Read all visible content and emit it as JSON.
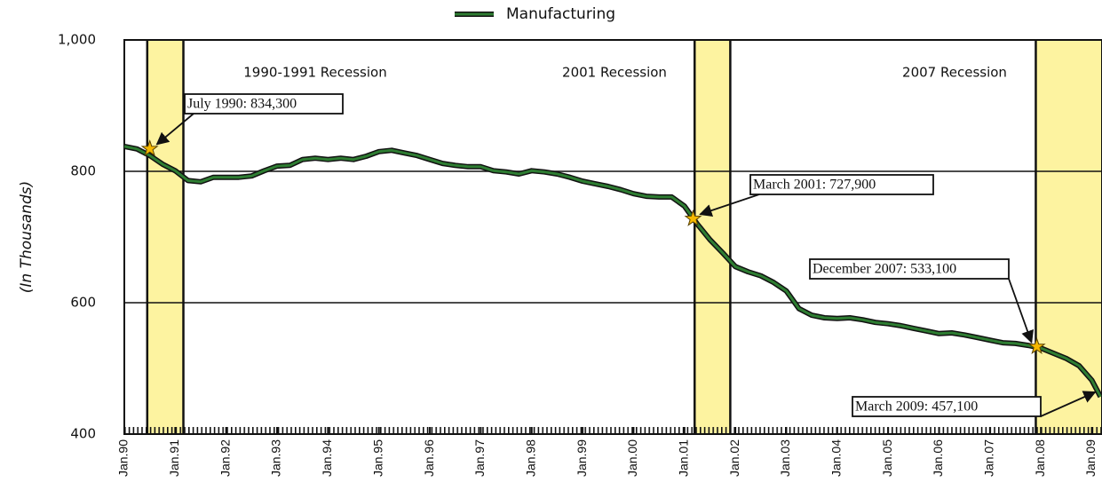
{
  "chart_data": {
    "type": "line",
    "legend": "Manufacturing",
    "y_label": "(In Thousands)",
    "series": [
      {
        "name": "Manufacturing",
        "color": "#2e7d32",
        "x": [
          1990.0,
          1990.25,
          1990.5,
          1990.75,
          1991.0,
          1991.25,
          1991.5,
          1991.75,
          1992.0,
          1992.25,
          1992.5,
          1992.75,
          1993.0,
          1993.25,
          1993.5,
          1993.75,
          1994.0,
          1994.25,
          1994.5,
          1994.75,
          1995.0,
          1995.25,
          1995.5,
          1995.75,
          1996.0,
          1996.25,
          1996.5,
          1996.75,
          1997.0,
          1997.25,
          1997.5,
          1997.75,
          1998.0,
          1998.25,
          1998.5,
          1998.75,
          1999.0,
          1999.25,
          1999.5,
          1999.75,
          2000.0,
          2000.25,
          2000.5,
          2000.75,
          2001.0,
          2001.25,
          2001.5,
          2001.75,
          2002.0,
          2002.25,
          2002.5,
          2002.75,
          2003.0,
          2003.25,
          2003.5,
          2003.75,
          2004.0,
          2004.25,
          2004.5,
          2004.75,
          2005.0,
          2005.25,
          2005.5,
          2005.75,
          2006.0,
          2006.25,
          2006.5,
          2006.75,
          2007.0,
          2007.25,
          2007.5,
          2007.75,
          2008.0,
          2008.25,
          2008.5,
          2008.75,
          2009.0,
          2009.17
        ],
        "values": [
          838,
          834,
          824,
          811,
          801,
          786,
          784,
          791,
          791,
          791,
          793,
          801,
          808,
          809,
          818,
          820,
          818,
          820,
          818,
          823,
          830,
          832,
          828,
          824,
          818,
          812,
          809,
          807,
          807,
          801,
          799,
          796,
          801,
          799,
          796,
          791,
          785,
          781,
          777,
          772,
          766,
          762,
          761,
          761,
          747,
          720,
          696,
          676,
          655,
          647,
          641,
          631,
          618,
          591,
          581,
          577,
          576,
          577,
          574,
          570,
          568,
          565,
          561,
          557,
          553,
          554,
          551,
          547,
          543,
          539,
          538,
          535,
          531,
          523,
          515,
          504,
          482,
          457
        ]
      }
    ],
    "xlim": [
      1990,
      2009.2
    ],
    "ylim": [
      400,
      1000
    ],
    "xticks": [
      {
        "value": 1990,
        "label": "Jan.90"
      },
      {
        "value": 1991,
        "label": "Jan.91"
      },
      {
        "value": 1992,
        "label": "Jan.92"
      },
      {
        "value": 1993,
        "label": "Jan.93"
      },
      {
        "value": 1994,
        "label": "Jan.94"
      },
      {
        "value": 1995,
        "label": "Jan.95"
      },
      {
        "value": 1996,
        "label": "Jan.96"
      },
      {
        "value": 1997,
        "label": "Jan.97"
      },
      {
        "value": 1998,
        "label": "Jan.98"
      },
      {
        "value": 1999,
        "label": "Jan.99"
      },
      {
        "value": 2000,
        "label": "Jan.00"
      },
      {
        "value": 2001,
        "label": "Jan.01"
      },
      {
        "value": 2002,
        "label": "Jan.02"
      },
      {
        "value": 2003,
        "label": "Jan.03"
      },
      {
        "value": 2004,
        "label": "Jan.04"
      },
      {
        "value": 2005,
        "label": "Jan.05"
      },
      {
        "value": 2006,
        "label": "Jan.06"
      },
      {
        "value": 2007,
        "label": "Jan.07"
      },
      {
        "value": 2008,
        "label": "Jan.08"
      },
      {
        "value": 2009,
        "label": "Jan.09"
      }
    ],
    "yticks": [
      400,
      600,
      800,
      {
        "value": 1000,
        "label": "1,000"
      }
    ],
    "grid": true,
    "shaded_regions": [
      {
        "start": 1990.45,
        "end": 1991.16,
        "label": "1990-1991 Recession"
      },
      {
        "start": 2001.2,
        "end": 2001.9,
        "label": "2001 Recession"
      },
      {
        "start": 2007.9,
        "end": 2009.2,
        "label": "2007 Recession"
      }
    ],
    "annotations": [
      {
        "text": "July 1990: 834,300",
        "x": 1990.5,
        "y": 834.3,
        "star": true
      },
      {
        "text": "March 2001: 727,900",
        "x": 2001.17,
        "y": 727.9,
        "star": true
      },
      {
        "text": "December 2007: 533,100",
        "x": 2007.92,
        "y": 533.1,
        "star": true
      },
      {
        "text": "March 2009: 457,100",
        "x": 2009.17,
        "y": 457.1,
        "star": false
      }
    ]
  }
}
